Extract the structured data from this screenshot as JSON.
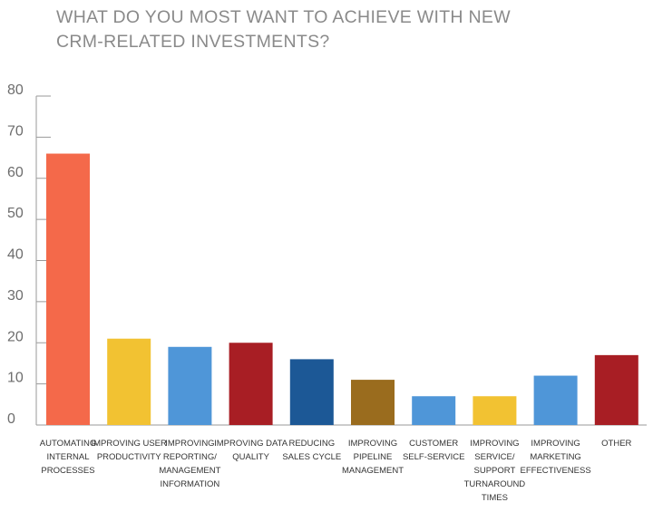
{
  "title": "WHAT DO YOU MOST WANT TO ACHIEVE WITH NEW\nCRM-RELATED INVESTMENTS?",
  "chart_data": {
    "type": "bar",
    "title": "WHAT DO YOU MOST WANT TO ACHIEVE WITH NEW CRM-RELATED INVESTMENTS?",
    "xlabel": "",
    "ylabel": "",
    "ylim": [
      0,
      80
    ],
    "yticks": [
      0,
      10,
      20,
      30,
      40,
      50,
      60,
      70,
      80
    ],
    "grid": false,
    "legend": "none",
    "categories": [
      [
        "AUTOMATING",
        "INTERNAL",
        "PROCESSES"
      ],
      [
        "IMPROVING USER",
        "PRODUCTIVITY"
      ],
      [
        "IMPROVING",
        "REPORTING/",
        "MANAGEMENT",
        "INFORMATION"
      ],
      [
        "IMPROVING DATA",
        "QUALITY"
      ],
      [
        "REDUCING",
        "SALES CYCLE"
      ],
      [
        "IMPROVING",
        "PIPELINE",
        "MANAGEMENT"
      ],
      [
        "CUSTOMER",
        "SELF-SERVICE"
      ],
      [
        "IMPROVING",
        "SERVICE/",
        "SUPPORT",
        "TURNAROUND",
        "TIMES"
      ],
      [
        "IMPROVING",
        "MARKETING",
        "EFFECTIVENESS"
      ],
      [
        "OTHER"
      ]
    ],
    "values": [
      66,
      21,
      19,
      20,
      16,
      11,
      7,
      7,
      12,
      17
    ],
    "colors": [
      "#f4694a",
      "#f2c232",
      "#4f96d8",
      "#a81e24",
      "#1c5896",
      "#9a6c1e",
      "#4f96d8",
      "#f2c232",
      "#4f96d8",
      "#a81e24"
    ],
    "axis_color": "#9a9a9a"
  }
}
